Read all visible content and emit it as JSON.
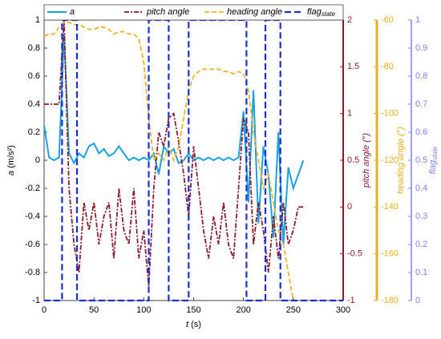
{
  "chart_data": {
    "type": "line",
    "x_label": {
      "var": "t",
      "unit": " (s)"
    },
    "y_label": {
      "var": "a",
      "unit": " (m/s²)"
    },
    "y2_label": "pitch angle (°)",
    "y3_label": "heading angle (°)",
    "y4_label": {
      "main": "flag",
      "sub": "state"
    },
    "xlim": [
      0,
      300
    ],
    "xticks": [
      0,
      50,
      100,
      150,
      200,
      250,
      300
    ],
    "ylim": [
      -1,
      1
    ],
    "yticks": [
      -1,
      -0.8,
      -0.6,
      -0.4,
      -0.2,
      0,
      0.2,
      0.4,
      0.6,
      0.8,
      1
    ],
    "y2lim": [
      -1,
      2
    ],
    "y2ticks": [
      -1,
      -0.5,
      0,
      0.5,
      1,
      1.5,
      2
    ],
    "y2color": "#8b1a2b",
    "y3lim": [
      -180,
      -60
    ],
    "y3ticks": [
      -180,
      -160,
      -140,
      -120,
      -100,
      -80,
      -60
    ],
    "y3color": "#e8b020",
    "y4lim": [
      0,
      1
    ],
    "y4ticks": [
      0,
      0.1,
      0.2,
      0.3,
      0.4,
      0.5,
      0.6,
      0.7,
      0.8,
      0.9,
      1
    ],
    "y4color": "#8080ff",
    "x": [
      0,
      5,
      10,
      15,
      20,
      25,
      30,
      35,
      40,
      45,
      50,
      55,
      60,
      65,
      70,
      75,
      80,
      85,
      90,
      95,
      100,
      105,
      110,
      115,
      120,
      125,
      130,
      135,
      140,
      145,
      150,
      155,
      160,
      165,
      170,
      175,
      180,
      185,
      190,
      195,
      200,
      205,
      210,
      215,
      220,
      225,
      230,
      235,
      240,
      245,
      250,
      255,
      260
    ],
    "series": [
      {
        "name": "a",
        "color": "#1aa3e0",
        "axis": "y",
        "dash": "",
        "width": 2,
        "values": [
          0.25,
          0.02,
          0,
          0.02,
          0.9,
          0.05,
          -0.02,
          0.05,
          0.02,
          0.1,
          0.12,
          0.05,
          0.08,
          0.03,
          0.05,
          0.1,
          0.05,
          0,
          0.02,
          0,
          0.02,
          0,
          0.05,
          -0.1,
          0.1,
          0.05,
          0.08,
          -0.02,
          0,
          0.05,
          0,
          0.02,
          0,
          0.02,
          0,
          0.02,
          0,
          0.02,
          0,
          0.02,
          0.35,
          -0.3,
          0.5,
          -0.45,
          0.1,
          -0.1,
          -0.55,
          0.2,
          -0.6,
          -0.05,
          -0.2,
          -0.1,
          0
        ]
      },
      {
        "name": "pitch angle",
        "color": "#8b1a2b",
        "axis": "y2",
        "dash": "6 2 2 2",
        "width": 1.8,
        "values": [
          1.1,
          1.1,
          1.1,
          1.1,
          2,
          0.2,
          -0.4,
          -0.7,
          0.05,
          -0.25,
          0.05,
          -0.4,
          -0.1,
          0.05,
          -0.55,
          0.2,
          -0.25,
          -0.4,
          0.2,
          -0.55,
          -0.25,
          -0.85,
          0.2,
          0.8,
          0.65,
          0.95,
          1,
          0.7,
          0.35,
          -0.1,
          0.65,
          0.2,
          -0.25,
          -0.55,
          -0.1,
          -0.4,
          0.05,
          -0.4,
          -0.55,
          0.2,
          0.95,
          0.8,
          -0.4,
          0.05,
          -0.25,
          -0.7,
          -0.1,
          -0.55,
          0.05,
          -0.4,
          -0.25,
          0,
          0
        ]
      },
      {
        "name": "heading angle",
        "color": "#f0b429",
        "axis": "y3",
        "dash": "6 3",
        "width": 1.8,
        "values": [
          -67,
          -66,
          -66,
          -63,
          -61,
          -61,
          -62,
          -62,
          -63,
          -64,
          -64,
          -63,
          -63,
          -64,
          -66,
          -65,
          -65,
          -66,
          -66,
          -68,
          -78,
          -102,
          -120,
          -117,
          -120,
          -114,
          -120,
          -114,
          -102,
          -90,
          -84,
          -82,
          -81,
          -81,
          -81,
          -81,
          -82,
          -82,
          -83,
          -82,
          -83,
          -90,
          -108,
          -120,
          -132,
          -126,
          -138,
          -150,
          -156,
          -168,
          -180,
          -180,
          -180
        ]
      },
      {
        "name": "flag",
        "sub": "state",
        "color": "#1a2fd0",
        "axis": "y4",
        "dash": "8 4",
        "width": 2.2,
        "x": [
          0,
          18,
          18,
          33,
          33,
          105,
          105,
          125,
          125,
          145,
          145,
          203,
          203,
          222,
          222,
          237,
          237,
          300
        ],
        "values": [
          0,
          0,
          1,
          1,
          0,
          0,
          1,
          1,
          0,
          0,
          1,
          1,
          0,
          0,
          1,
          1,
          0,
          0
        ]
      }
    ]
  }
}
